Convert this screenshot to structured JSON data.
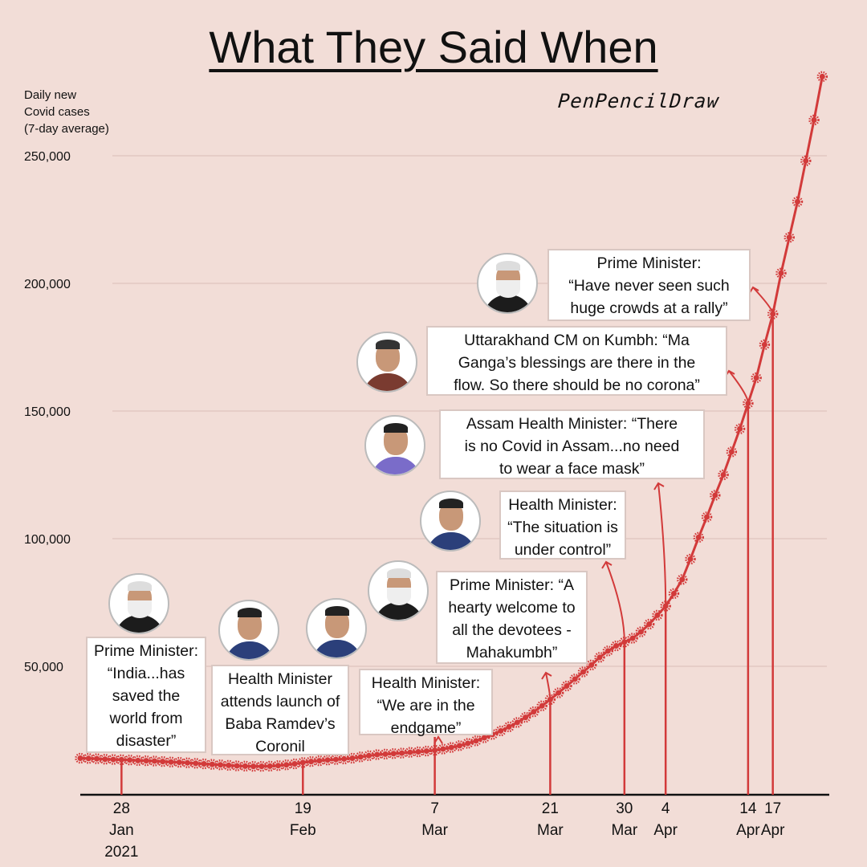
{
  "title": "What They Said When",
  "logo": "PenPencilDraw",
  "colors": {
    "background": "#f2ddd7",
    "series": "#d23a3a",
    "grid": "#e6cdc7",
    "callout_bg": "#ffffff"
  },
  "chart_data": {
    "type": "line",
    "title": "What They Said When",
    "ylabel": [
      "Daily new",
      "Covid cases",
      "(7-day average)"
    ],
    "ylim": [
      0,
      280000
    ],
    "yticks": [
      "50,000",
      "100,000",
      "150,000",
      "200,000",
      "250,000"
    ],
    "ytick_values": [
      50000,
      100000,
      150000,
      200000,
      250000
    ],
    "grid": "horizontal",
    "x_start": "2021-01-23",
    "x_end": "2021-04-23",
    "values": [
      14000,
      13900,
      13800,
      13600,
      13500,
      13400,
      13300,
      13100,
      13000,
      12900,
      12700,
      12500,
      12400,
      12200,
      12000,
      11800,
      11600,
      11400,
      11200,
      11000,
      10900,
      10800,
      10800,
      10900,
      11100,
      11400,
      11800,
      12300,
      12700,
      13000,
      13300,
      13500,
      13700,
      14000,
      14500,
      15000,
      15400,
      15600,
      15800,
      16000,
      16300,
      16500,
      16800,
      17100,
      17600,
      18200,
      18900,
      19800,
      20800,
      22000,
      23300,
      24700,
      26300,
      28000,
      30000,
      32200,
      34500,
      37000,
      39600,
      42300,
      45000,
      47800,
      50500,
      53500,
      56000,
      58000,
      59500,
      61000,
      63500,
      66500,
      70000,
      73600,
      78500,
      84000,
      92000,
      100500,
      108500,
      117000,
      125000,
      134000,
      143000,
      153000,
      163000,
      176000,
      188000,
      204000,
      218000,
      232000,
      248000,
      264000,
      281000
    ],
    "xticks": [
      {
        "date": "2021-01-28",
        "lines": [
          "28",
          "Jan",
          "2021"
        ]
      },
      {
        "date": "2021-02-19",
        "lines": [
          "19",
          "Feb"
        ]
      },
      {
        "date": "2021-03-07",
        "lines": [
          "7",
          "Mar"
        ]
      },
      {
        "date": "2021-03-21",
        "lines": [
          "21",
          "Mar"
        ]
      },
      {
        "date": "2021-03-30",
        "lines": [
          "30",
          "Mar"
        ]
      },
      {
        "date": "2021-04-04",
        "lines": [
          "4",
          "Apr"
        ]
      },
      {
        "date": "2021-04-14",
        "lines": [
          "14",
          "Apr"
        ]
      },
      {
        "date": "2021-04-17",
        "lines": [
          "17",
          "Apr"
        ]
      }
    ],
    "annotations": [
      {
        "date": "2021-01-28",
        "person": "prime-minister",
        "lines": [
          "Prime Minister:",
          "“India...has",
          "saved the",
          "world from",
          "disaster”"
        ]
      },
      {
        "date": "2021-02-19",
        "person": "health-minister",
        "lines": [
          "Health Minister",
          "attends launch of",
          "Baba Ramdev’s",
          "Coronil"
        ]
      },
      {
        "date": "2021-03-07",
        "person": "health-minister",
        "lines": [
          "Health Minister:",
          "“We are in the",
          "endgame”"
        ]
      },
      {
        "date": "2021-03-21",
        "person": "prime-minister",
        "lines": [
          "Prime Minister: “A",
          "hearty welcome to",
          "all the devotees -",
          "Mahakumbh”"
        ]
      },
      {
        "date": "2021-03-30",
        "person": "health-minister",
        "lines": [
          "Health Minister:",
          "“The situation is",
          "under control”"
        ]
      },
      {
        "date": "2021-04-04",
        "person": "assam-health-minister",
        "lines": [
          "Assam Health Minister: “There",
          "is no Covid in Assam...no need",
          "to wear a face mask”"
        ]
      },
      {
        "date": "2021-04-14",
        "person": "uttarakhand-cm",
        "lines": [
          "Uttarakhand CM on Kumbh: “Ma",
          "Ganga’s blessings are there in the",
          "flow. So there should be no corona”"
        ]
      },
      {
        "date": "2021-04-17",
        "person": "prime-minister",
        "lines": [
          "Prime Minister:",
          "“Have never seen such",
          "huge crowds at a rally”"
        ]
      }
    ]
  }
}
